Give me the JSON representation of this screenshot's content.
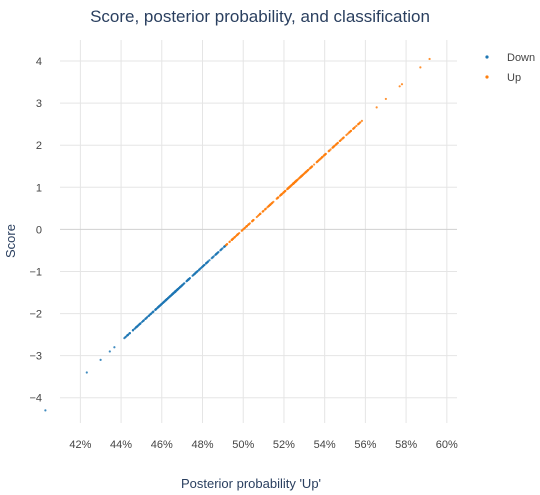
{
  "chart_data": {
    "type": "scatter",
    "title": "Score, posterior probability, and classification",
    "xlabel": "Posterior probability 'Up'",
    "ylabel": "Score",
    "xlim": [
      0.41,
      0.605
    ],
    "ylim": [
      -4.6,
      4.5
    ],
    "x_ticks": [
      0.42,
      0.44,
      0.46,
      0.48,
      0.5,
      0.52,
      0.54,
      0.56,
      0.58,
      0.6
    ],
    "x_tick_labels": [
      "42%",
      "44%",
      "46%",
      "48%",
      "50%",
      "52%",
      "54%",
      "56%",
      "58%",
      "60%"
    ],
    "y_ticks": [
      -4,
      -3,
      -2,
      -1,
      0,
      1,
      2,
      3,
      4
    ],
    "y_tick_labels": [
      "−4",
      "−3",
      "−2",
      "−1",
      "0",
      "1",
      "2",
      "3",
      "4"
    ],
    "grid": true,
    "legend_position": "top-right",
    "relationship": {
      "x_at_score_zero": 0.5,
      "x_per_score_unit": 0.0226
    },
    "series": [
      {
        "name": "Down",
        "color": "#1f77b4",
        "score_min": -4.3,
        "score_max": -0.35,
        "isolated_scores": [
          -4.3,
          -3.4,
          -3.1,
          -2.9,
          -2.8
        ],
        "dense_range": [
          -2.6,
          -0.35
        ]
      },
      {
        "name": "Up",
        "color": "#ff7f0e",
        "score_min": -0.4,
        "score_max": 4.05,
        "isolated_scores": [
          2.9,
          3.1,
          3.4,
          3.45,
          3.85,
          4.05
        ],
        "dense_range": [
          -0.4,
          2.6
        ]
      }
    ]
  }
}
